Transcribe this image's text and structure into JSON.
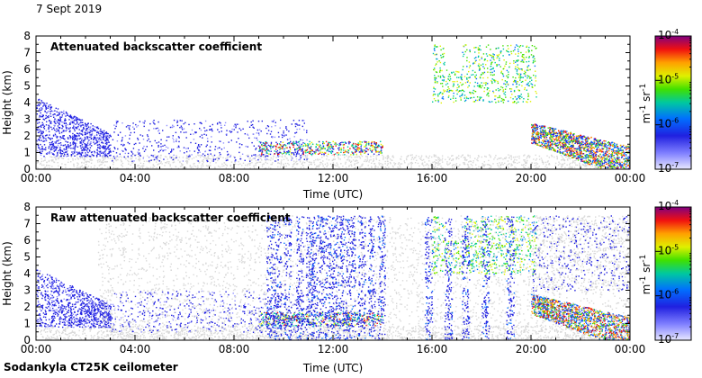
{
  "date_label": "7 Sept 2019",
  "instrument_label": "Sodankyla CT25K ceilometer",
  "chart_data": [
    {
      "type": "heatmap",
      "title": "Attenuated backscatter coefficient",
      "xlabel": "Time (UTC)",
      "ylabel": "Height (km)",
      "xlim": [
        0,
        24
      ],
      "ylim": [
        0,
        8
      ],
      "x_ticks": [
        "00:00",
        "04:00",
        "08:00",
        "12:00",
        "16:00",
        "20:00",
        "00:00"
      ],
      "y_ticks": [
        "0",
        "1",
        "2",
        "3",
        "4",
        "5",
        "6",
        "7",
        "8"
      ],
      "colorbar": {
        "unit_base": "m",
        "unit_exp": "-1",
        "unit_base2": " sr",
        "unit_exp2": "-1",
        "tick_labels": [
          {
            "base": "10",
            "exp": "-4"
          },
          {
            "base": "10",
            "exp": "-5"
          },
          {
            "base": "10",
            "exp": "-6"
          },
          {
            "base": "10",
            "exp": "-7"
          }
        ],
        "scale": "log",
        "range": [
          1e-07,
          0.0001
        ]
      }
    },
    {
      "type": "heatmap",
      "title": "Raw attenuated backscatter coefficient",
      "xlabel": "Time (UTC)",
      "ylabel": "Height (km)",
      "xlim": [
        0,
        24
      ],
      "ylim": [
        0,
        8
      ],
      "x_ticks": [
        "00:00",
        "04:00",
        "08:00",
        "12:00",
        "16:00",
        "20:00",
        "00:00"
      ],
      "y_ticks": [
        "0",
        "1",
        "2",
        "3",
        "4",
        "5",
        "6",
        "7",
        "8"
      ],
      "colorbar": {
        "unit_base": "m",
        "unit_exp": "-1",
        "unit_base2": " sr",
        "unit_exp2": "-1",
        "tick_labels": [
          {
            "base": "10",
            "exp": "-4"
          },
          {
            "base": "10",
            "exp": "-5"
          },
          {
            "base": "10",
            "exp": "-6"
          },
          {
            "base": "10",
            "exp": "-7"
          }
        ],
        "scale": "log",
        "range": [
          1e-07,
          0.0001
        ]
      }
    }
  ]
}
